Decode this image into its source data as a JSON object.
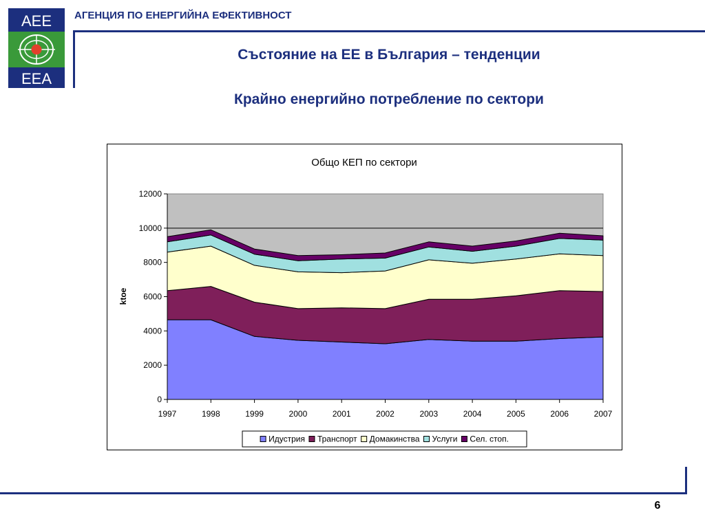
{
  "header": {
    "agency_name": "АГЕНЦИЯ ПО ЕНЕРГИЙНА ЕФЕКТИВНОСТ",
    "logo": {
      "top_text": "AEE",
      "bottom_text": "EEA",
      "icon": "globe-logo-icon",
      "colors": {
        "blue": "#1c2f7e",
        "green": "#3a9a3a",
        "red": "#e2402c"
      }
    }
  },
  "slide": {
    "title": "Състояние на ЕЕ в България – тенденции",
    "subtitle": "Крайно енергийно потребление по сектори",
    "page_number": "6"
  },
  "chart_data": {
    "type": "area",
    "stacked": true,
    "title": "Общо КЕП по сектори",
    "xlabel": "",
    "ylabel": "ktoe",
    "x": [
      "1997",
      "1998",
      "1999",
      "2000",
      "2001",
      "2002",
      "2003",
      "2004",
      "2005",
      "2006",
      "2007"
    ],
    "ylim": [
      0,
      12000
    ],
    "yticks": [
      "0",
      "2000",
      "4000",
      "6000",
      "8000",
      "10000",
      "12000"
    ],
    "grid": true,
    "legend_position": "bottom",
    "plot_background": "#c0c0c0",
    "series": [
      {
        "name": "Идустрия",
        "color": "#8080ff",
        "values": [
          4650,
          4650,
          3680,
          3450,
          3350,
          3250,
          3500,
          3400,
          3400,
          3550,
          3650
        ]
      },
      {
        "name": "Транспорт",
        "color": "#7f1f5a",
        "values": [
          1700,
          1950,
          2000,
          1850,
          2000,
          2050,
          2350,
          2450,
          2650,
          2800,
          2650
        ]
      },
      {
        "name": "Домакинства",
        "color": "#ffffcc",
        "values": [
          2250,
          2350,
          2150,
          2150,
          2050,
          2200,
          2300,
          2100,
          2150,
          2150,
          2100
        ]
      },
      {
        "name": "Услуги",
        "color": "#a0e0e0",
        "values": [
          600,
          650,
          650,
          650,
          800,
          750,
          750,
          700,
          750,
          900,
          900
        ]
      },
      {
        "name": "Сел. стоп.",
        "color": "#660066",
        "values": [
          300,
          300,
          300,
          300,
          250,
          300,
          300,
          300,
          300,
          300,
          250
        ]
      }
    ]
  }
}
